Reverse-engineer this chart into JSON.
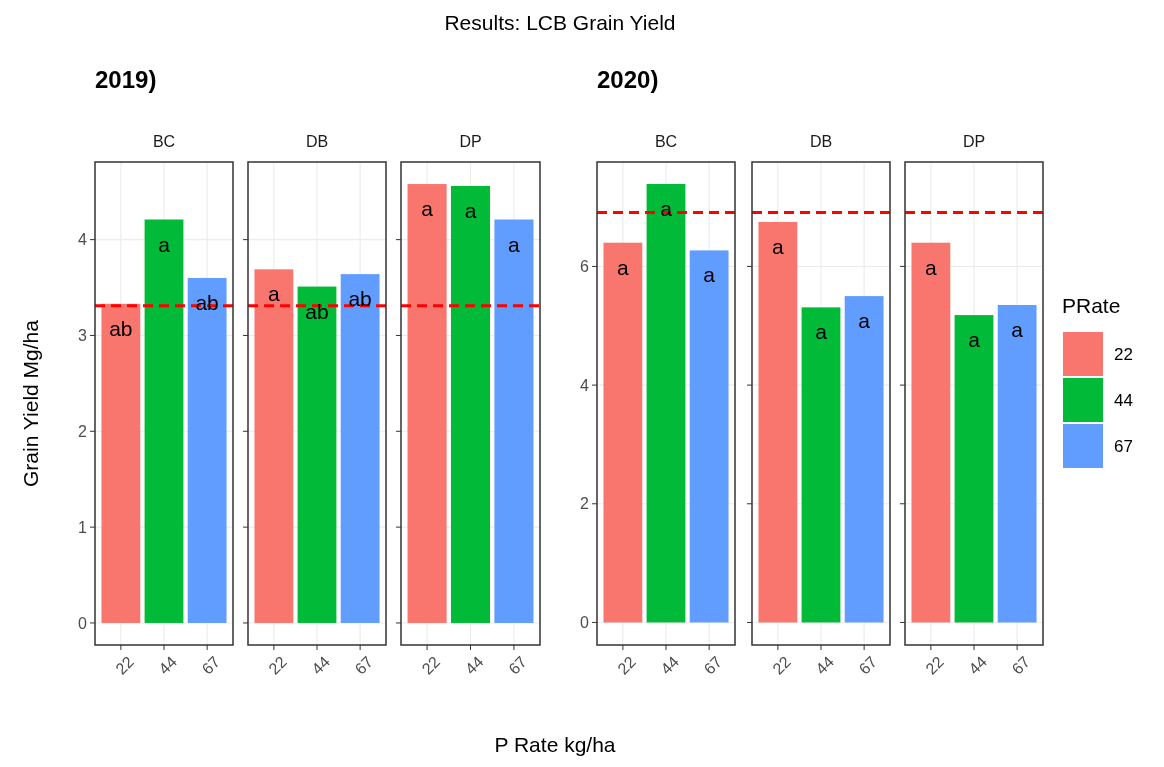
{
  "chart_data": [
    {
      "type": "bar",
      "title": "BC",
      "subtitle": "2019)",
      "annotations": [
        "Results: LCB Grain Yield",
        "P Rate kg/ha"
      ],
      "ylabel": "Grain Yield Mg/ha",
      "categories": [
        "22",
        "44",
        "67"
      ],
      "values": [
        3.33,
        4.21,
        3.6
      ],
      "colors": [
        "#f8766d",
        "#00ba38",
        "#619cff"
      ],
      "value_labels": [
        "ab",
        "a",
        "ab"
      ],
      "ylim": [
        -0.23,
        4.81
      ],
      "yticks": [
        0,
        1,
        2,
        3,
        4
      ],
      "grid": true,
      "ref_lines": [
        {
          "axis": "y",
          "value": 3.31,
          "color": "#ff0000",
          "line_style": "dashed"
        }
      ]
    },
    {
      "type": "bar",
      "title": "DB",
      "categories": [
        "22",
        "44",
        "67"
      ],
      "values": [
        3.69,
        3.51,
        3.64
      ],
      "colors": [
        "#f8766d",
        "#00ba38",
        "#619cff"
      ],
      "value_labels": [
        "a",
        "ab",
        "ab"
      ],
      "ylim": [
        -0.23,
        4.81
      ],
      "yticks": [
        0,
        1,
        2,
        3,
        4
      ],
      "grid": true,
      "tick_labels": "x",
      "ref_lines": [
        {
          "axis": "y",
          "value": 3.31,
          "color": "#ff0000",
          "line_style": "dashed"
        }
      ]
    },
    {
      "type": "bar",
      "title": "DP",
      "categories": [
        "22",
        "44",
        "67"
      ],
      "values": [
        4.58,
        4.56,
        4.21
      ],
      "colors": [
        "#f8766d",
        "#00ba38",
        "#619cff"
      ],
      "value_labels": [
        "a",
        "a",
        "a"
      ],
      "ylim": [
        -0.23,
        4.81
      ],
      "yticks": [
        0,
        1,
        2,
        3,
        4
      ],
      "grid": true,
      "tick_labels": "x",
      "ref_lines": [
        {
          "axis": "y",
          "value": 3.31,
          "color": "#ff0000",
          "line_style": "dashed"
        }
      ]
    },
    {
      "type": "bar",
      "title": "BC",
      "subtitle": "2020)",
      "categories": [
        "22",
        "44",
        "67"
      ],
      "values": [
        6.4,
        7.39,
        6.27
      ],
      "colors": [
        "#f8766d",
        "#00ba38",
        "#619cff"
      ],
      "value_labels": [
        "a",
        "a",
        "a"
      ],
      "ylim": [
        -0.38,
        7.76
      ],
      "yticks": [
        0,
        2,
        4,
        6
      ],
      "grid": true,
      "ref_lines": [
        {
          "axis": "y",
          "value": 6.91,
          "color": "#ff0000",
          "line_style": "dashed"
        }
      ]
    },
    {
      "type": "bar",
      "title": "DB",
      "categories": [
        "22",
        "44",
        "67"
      ],
      "values": [
        6.75,
        5.31,
        5.5
      ],
      "colors": [
        "#f8766d",
        "#00ba38",
        "#619cff"
      ],
      "value_labels": [
        "a",
        "a",
        "a"
      ],
      "ylim": [
        -0.38,
        7.76
      ],
      "yticks": [
        0,
        2,
        4,
        6
      ],
      "grid": true,
      "tick_labels": "x",
      "ref_lines": [
        {
          "axis": "y",
          "value": 6.91,
          "color": "#ff0000",
          "line_style": "dashed"
        }
      ]
    },
    {
      "type": "bar",
      "title": "DP",
      "legend_title": "PRate",
      "categories": [
        "22",
        "44",
        "67"
      ],
      "values": [
        6.4,
        5.18,
        5.35
      ],
      "colors": [
        "#f8766d",
        "#00ba38",
        "#619cff"
      ],
      "value_labels": [
        "a",
        "a",
        "a"
      ],
      "ylim": [
        -0.38,
        7.76
      ],
      "yticks": [
        0,
        2,
        4,
        6
      ],
      "grid": true,
      "tick_labels": "x",
      "ref_lines": [
        {
          "axis": "y",
          "value": 6.91,
          "color": "#ff0000",
          "line_style": "dashed"
        }
      ]
    }
  ]
}
